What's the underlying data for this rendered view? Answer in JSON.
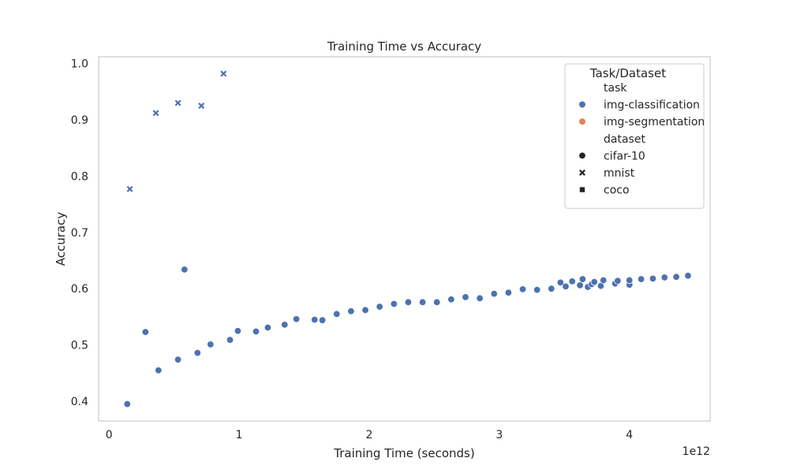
{
  "chart_data": {
    "type": "scatter",
    "title": "Training Time vs Accuracy",
    "xlabel": "Training Time (seconds)",
    "ylabel": "Accuracy",
    "x_offset_label": "1e12",
    "xlim": [
      -0.08,
      4.62
    ],
    "ylim": [
      0.365,
      1.012
    ],
    "xticks": [
      0,
      1,
      2,
      3,
      4
    ],
    "xtick_labels": [
      "0",
      "1",
      "2",
      "3",
      "4"
    ],
    "yticks": [
      0.4,
      0.5,
      0.6,
      0.7,
      0.8,
      0.9,
      1.0
    ],
    "ytick_labels": [
      "0.4",
      "0.5",
      "0.6",
      "0.7",
      "0.8",
      "0.9",
      "1.0"
    ],
    "grid": false,
    "legend": {
      "title": "Task/Dataset",
      "placement": "top-right",
      "items": [
        {
          "label": "task",
          "kind": "header"
        },
        {
          "label": "img-classification",
          "kind": "color",
          "color": "#4c72b0"
        },
        {
          "label": "img-segmentation",
          "kind": "color",
          "color": "#dd8452"
        },
        {
          "label": "dataset",
          "kind": "header"
        },
        {
          "label": "cifar-10",
          "kind": "marker",
          "marker": "circle"
        },
        {
          "label": "mnist",
          "kind": "marker",
          "marker": "x"
        },
        {
          "label": "coco",
          "kind": "marker",
          "marker": "square"
        }
      ]
    },
    "series": [
      {
        "task": "img-classification",
        "dataset": "cifar-10",
        "marker": "circle",
        "color": "#4c72b0",
        "points": [
          [
            0.14,
            0.395
          ],
          [
            0.28,
            0.523
          ],
          [
            0.38,
            0.455
          ],
          [
            0.53,
            0.474
          ],
          [
            0.58,
            0.634
          ],
          [
            0.68,
            0.486
          ],
          [
            0.78,
            0.501
          ],
          [
            0.93,
            0.509
          ],
          [
            0.99,
            0.525
          ],
          [
            1.13,
            0.524
          ],
          [
            1.22,
            0.531
          ],
          [
            1.35,
            0.536
          ],
          [
            1.44,
            0.546
          ],
          [
            1.58,
            0.545
          ],
          [
            1.64,
            0.544
          ],
          [
            1.75,
            0.555
          ],
          [
            1.86,
            0.56
          ],
          [
            1.97,
            0.562
          ],
          [
            2.08,
            0.568
          ],
          [
            2.19,
            0.573
          ],
          [
            2.3,
            0.576
          ],
          [
            2.41,
            0.576
          ],
          [
            2.52,
            0.576
          ],
          [
            2.63,
            0.581
          ],
          [
            2.74,
            0.585
          ],
          [
            2.85,
            0.583
          ],
          [
            2.96,
            0.591
          ],
          [
            3.07,
            0.593
          ],
          [
            3.18,
            0.599
          ],
          [
            3.29,
            0.598
          ],
          [
            3.4,
            0.6
          ],
          [
            3.47,
            0.611
          ],
          [
            3.51,
            0.604
          ],
          [
            3.56,
            0.613
          ],
          [
            3.62,
            0.606
          ],
          [
            3.64,
            0.617
          ],
          [
            3.68,
            0.603
          ],
          [
            3.71,
            0.608
          ],
          [
            3.73,
            0.612
          ],
          [
            3.78,
            0.605
          ],
          [
            3.8,
            0.615
          ],
          [
            3.89,
            0.609
          ],
          [
            3.91,
            0.614
          ],
          [
            4.0,
            0.607
          ],
          [
            4.0,
            0.615
          ],
          [
            4.09,
            0.617
          ],
          [
            4.18,
            0.618
          ],
          [
            4.27,
            0.62
          ],
          [
            4.36,
            0.621
          ],
          [
            4.45,
            0.623
          ]
        ]
      },
      {
        "task": "img-classification",
        "dataset": "mnist",
        "marker": "x",
        "color": "#4c72b0",
        "points": [
          [
            0.16,
            0.777
          ],
          [
            0.36,
            0.912
          ],
          [
            0.53,
            0.93
          ],
          [
            0.71,
            0.925
          ],
          [
            0.88,
            0.982
          ]
        ]
      }
    ]
  }
}
